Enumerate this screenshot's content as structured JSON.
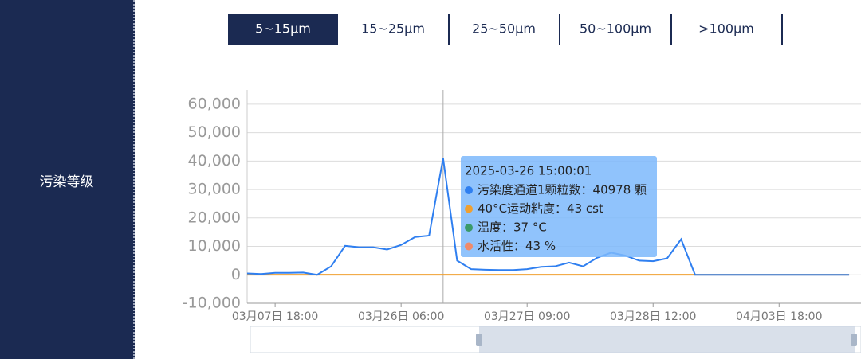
{
  "sidebar": {
    "label": "污染等级"
  },
  "tabs": {
    "items": [
      "5~15μm",
      "15~25μm",
      "25~50μm",
      "50~100μm",
      ">100μm"
    ],
    "active": 0
  },
  "chart_data": {
    "type": "line",
    "categories": [
      null,
      null,
      "03月07日 18:00",
      null,
      null,
      null,
      null,
      null,
      null,
      null,
      null,
      "03月26日 06:00",
      null,
      null,
      null,
      null,
      null,
      null,
      null,
      null,
      "03月27日 09:00",
      null,
      null,
      null,
      null,
      null,
      null,
      null,
      null,
      "03月28日 12:00",
      null,
      null,
      null,
      null,
      null,
      null,
      null,
      null,
      "04月03日 18:00",
      null,
      null,
      null,
      null,
      null
    ],
    "series": [
      {
        "name": "污染度通道1颗粒数",
        "color": "#2f7ff0",
        "values": [
          500,
          300,
          700,
          700,
          800,
          0,
          3000,
          10200,
          9700,
          9700,
          8900,
          10500,
          13300,
          13800,
          40978,
          5000,
          2000,
          1800,
          1700,
          1700,
          2000,
          2800,
          3000,
          4300,
          3000,
          6000,
          7800,
          6800,
          5000,
          4800,
          5800,
          12500,
          0,
          0,
          0,
          0,
          0,
          0,
          0,
          0,
          0,
          0,
          0,
          0
        ]
      },
      {
        "name": "40°C运动粘度",
        "color": "#f0a030",
        "values": [
          43,
          43,
          43,
          43,
          43,
          43,
          43,
          43,
          43,
          43,
          43,
          43,
          43,
          43,
          43,
          43,
          43,
          43,
          43,
          43,
          43,
          43,
          43,
          43,
          43,
          43,
          43,
          43,
          43,
          43,
          43,
          43,
          43,
          43,
          43,
          43,
          43,
          43,
          43,
          43,
          43,
          43,
          43,
          43
        ]
      }
    ],
    "ylim": [
      -10000,
      65000
    ],
    "yticks": [
      {
        "value": -10000,
        "label": "-10,000"
      },
      0,
      {
        "value": 10000,
        "label": "10,000"
      },
      {
        "value": 20000,
        "label": "20,000"
      },
      {
        "value": 30000,
        "label": "30,000"
      },
      {
        "value": 40000,
        "label": "40,000"
      },
      {
        "value": 50000,
        "label": "50,000"
      },
      {
        "value": 60000,
        "label": "60,000"
      }
    ],
    "grid": true,
    "tooltip": {
      "index": 14,
      "title": "2025-03-26 15:00:01",
      "items": [
        {
          "text": "污染度通道1颗粒数：40978 颗",
          "color": "#2f7ff0"
        },
        {
          "text": "40°C运动粘度：43 cst",
          "color": "#f0a030"
        },
        {
          "text": "温度：37 °C",
          "color": "#3a9a6a"
        },
        {
          "text": "水活性：43 %",
          "color": "#f08a6a"
        }
      ]
    }
  }
}
